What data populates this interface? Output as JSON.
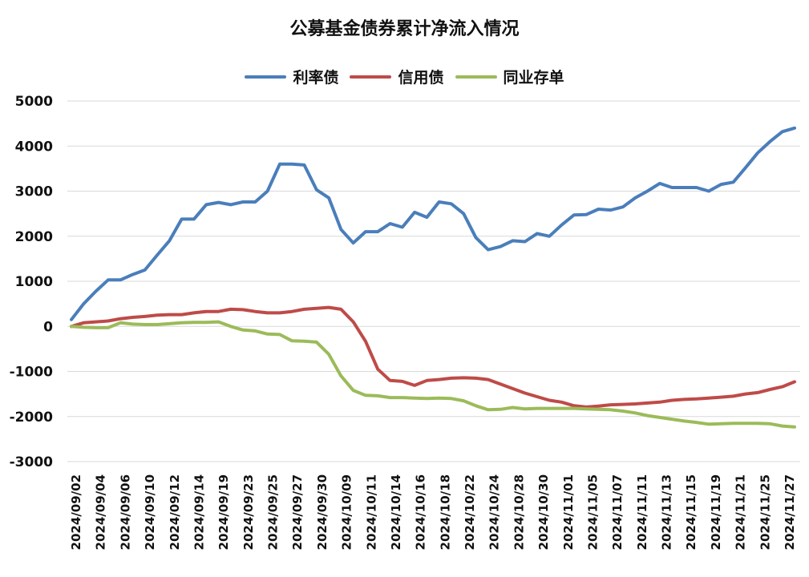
{
  "chart_data": {
    "type": "line",
    "title": "公募基金债券累计净流入情况",
    "xlabel": "",
    "ylabel": "",
    "ylim": [
      -3000,
      5000
    ],
    "yticks": [
      "5000",
      "4000",
      "3000",
      "2000",
      "1000",
      "0",
      "-1000",
      "-2000",
      "-3000"
    ],
    "grid": true,
    "legend_position": "top",
    "x_tick_labels": [
      "2024/09/02",
      "2024/09/04",
      "2024/09/06",
      "2024/09/10",
      "2024/09/12",
      "2024/09/14",
      "2024/09/19",
      "2024/09/23",
      "2024/09/25",
      "2024/09/27",
      "2024/09/30",
      "2024/10/09",
      "2024/10/11",
      "2024/10/14",
      "2024/10/16",
      "2024/10/18",
      "2024/10/22",
      "2024/10/24",
      "2024/10/28",
      "2024/10/30",
      "2024/11/01",
      "2024/11/05",
      "2024/11/07",
      "2024/11/11",
      "2024/11/13",
      "2024/11/15",
      "2024/11/19",
      "2024/11/21",
      "2024/11/25",
      "2024/11/27"
    ],
    "series": [
      {
        "name": "利率债",
        "color": "#4a7ebb",
        "values": [
          150,
          500,
          780,
          1030,
          1030,
          1150,
          1250,
          1580,
          1900,
          2380,
          2380,
          2700,
          2750,
          2700,
          2760,
          2760,
          3000,
          3600,
          3600,
          3580,
          3030,
          2850,
          2150,
          1850,
          2100,
          2100,
          2280,
          2200,
          2530,
          2420,
          2760,
          2720,
          2500,
          1970,
          1700,
          1770,
          1900,
          1880,
          2060,
          2000,
          2250,
          2470,
          2480,
          2600,
          2580,
          2650,
          2850,
          3000,
          3170,
          3080,
          3080,
          3080,
          3000,
          3150,
          3200,
          3520,
          3850,
          4100,
          4320,
          4400
        ]
      },
      {
        "name": "信用债",
        "color": "#be4b48",
        "values": [
          0,
          80,
          100,
          120,
          170,
          200,
          220,
          250,
          260,
          260,
          300,
          330,
          330,
          380,
          370,
          330,
          300,
          300,
          330,
          380,
          400,
          420,
          380,
          100,
          -330,
          -950,
          -1200,
          -1220,
          -1310,
          -1200,
          -1180,
          -1150,
          -1140,
          -1150,
          -1180,
          -1280,
          -1380,
          -1480,
          -1560,
          -1640,
          -1680,
          -1760,
          -1790,
          -1770,
          -1740,
          -1730,
          -1720,
          -1700,
          -1680,
          -1640,
          -1620,
          -1610,
          -1590,
          -1570,
          -1550,
          -1500,
          -1470,
          -1400,
          -1340,
          -1230
        ]
      },
      {
        "name": "同业存单",
        "color": "#9bbb59",
        "values": [
          0,
          -20,
          -30,
          -30,
          80,
          50,
          40,
          40,
          60,
          80,
          90,
          90,
          100,
          0,
          -80,
          -100,
          -170,
          -180,
          -320,
          -330,
          -350,
          -620,
          -1100,
          -1420,
          -1530,
          -1540,
          -1580,
          -1580,
          -1590,
          -1600,
          -1590,
          -1600,
          -1650,
          -1760,
          -1850,
          -1840,
          -1800,
          -1830,
          -1820,
          -1820,
          -1820,
          -1820,
          -1830,
          -1840,
          -1850,
          -1880,
          -1920,
          -1980,
          -2020,
          -2060,
          -2100,
          -2130,
          -2170,
          -2160,
          -2150,
          -2150,
          -2150,
          -2160,
          -2210,
          -2230
        ]
      }
    ]
  }
}
